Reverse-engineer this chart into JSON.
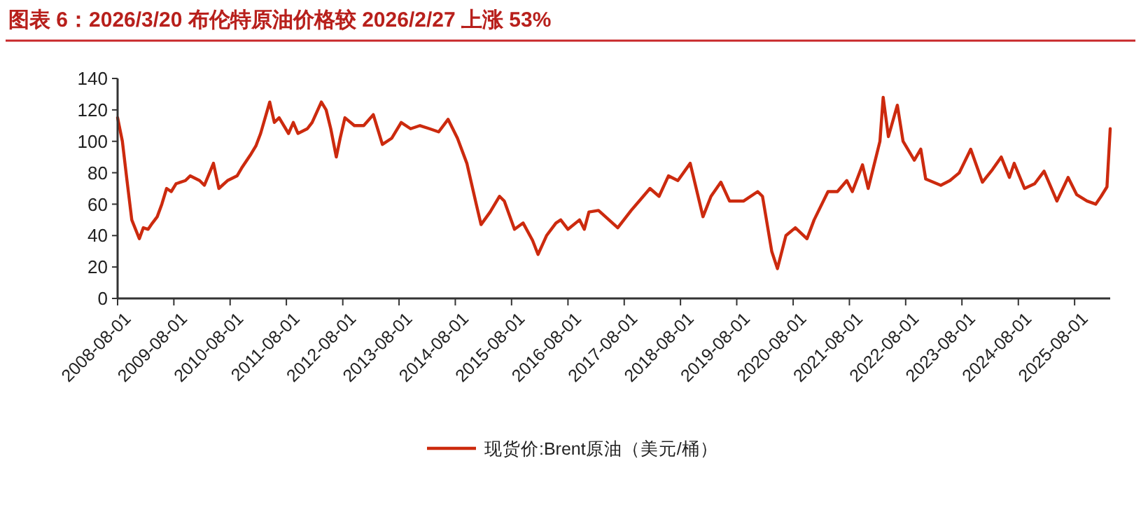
{
  "chart_data": {
    "type": "line",
    "title": "图表 6：2026/3/20 布伦特原油价格较 2026/2/27 上涨 53%",
    "x": [
      "2008-08-01",
      "2008-09-01",
      "2008-10-01",
      "2008-11-01",
      "2008-12-20",
      "2009-01-15",
      "2009-02-15",
      "2009-03-15",
      "2009-04-15",
      "2009-05-15",
      "2009-06-15",
      "2009-07-15",
      "2009-08-15",
      "2009-10-15",
      "2009-11-15",
      "2010-01-15",
      "2010-02-15",
      "2010-04-15",
      "2010-05-20",
      "2010-07-15",
      "2010-09-15",
      "2010-10-15",
      "2010-12-15",
      "2011-01-15",
      "2011-02-15",
      "2011-04-15",
      "2011-05-15",
      "2011-06-15",
      "2011-08-15",
      "2011-09-15",
      "2011-10-15",
      "2011-12-15",
      "2012-01-15",
      "2012-03-15",
      "2012-04-15",
      "2012-05-15",
      "2012-06-20",
      "2012-07-15",
      "2012-08-15",
      "2012-10-15",
      "2012-12-15",
      "2013-02-15",
      "2013-04-15",
      "2013-06-15",
      "2013-08-15",
      "2013-10-15",
      "2013-12-15",
      "2014-02-15",
      "2014-04-15",
      "2014-06-15",
      "2014-08-15",
      "2014-10-15",
      "2014-12-15",
      "2015-01-15",
      "2015-03-15",
      "2015-05-15",
      "2015-06-15",
      "2015-08-20",
      "2015-10-15",
      "2015-12-15",
      "2016-01-20",
      "2016-03-15",
      "2016-05-15",
      "2016-06-15",
      "2016-08-01",
      "2016-10-15",
      "2016-11-15",
      "2016-12-15",
      "2017-02-15",
      "2017-06-20",
      "2017-09-15",
      "2017-11-15",
      "2018-01-15",
      "2018-03-15",
      "2018-05-15",
      "2018-07-15",
      "2018-10-03",
      "2018-12-25",
      "2019-02-15",
      "2019-04-20",
      "2019-06-15",
      "2019-09-15",
      "2019-12-15",
      "2020-01-15",
      "2020-03-15",
      "2020-04-21",
      "2020-06-15",
      "2020-08-15",
      "2020-10-30",
      "2020-12-15",
      "2021-03-15",
      "2021-05-15",
      "2021-07-15",
      "2021-08-20",
      "2021-10-25",
      "2021-12-01",
      "2022-02-15",
      "2022-03-08",
      "2022-04-11",
      "2022-06-08",
      "2022-07-15",
      "2022-09-26",
      "2022-11-07",
      "2022-12-09",
      "2023-03-17",
      "2023-05-15",
      "2023-07-15",
      "2023-09-27",
      "2023-12-12",
      "2024-02-15",
      "2024-04-12",
      "2024-06-04",
      "2024-07-05",
      "2024-09-10",
      "2024-11-15",
      "2025-01-15",
      "2025-04-08",
      "2025-06-20",
      "2025-08-15",
      "2025-10-20",
      "2025-12-16",
      "2026-01-20",
      "2026-02-27",
      "2026-03-20"
    ],
    "series": [
      {
        "name": "现货价:Brent原油（美元/桶）",
        "color": "#cc2a0e",
        "values": [
          115,
          100,
          75,
          50,
          38,
          45,
          44,
          48,
          52,
          60,
          70,
          68,
          73,
          75,
          78,
          75,
          72,
          86,
          70,
          75,
          78,
          83,
          92,
          97,
          105,
          125,
          112,
          115,
          105,
          112,
          105,
          108,
          112,
          125,
          120,
          108,
          90,
          102,
          115,
          110,
          110,
          117,
          98,
          102,
          112,
          108,
          110,
          108,
          106,
          114,
          102,
          86,
          60,
          47,
          55,
          65,
          62,
          44,
          48,
          37,
          28,
          40,
          48,
          50,
          44,
          50,
          44,
          55,
          56,
          45,
          56,
          63,
          70,
          65,
          78,
          75,
          86,
          52,
          65,
          74,
          62,
          62,
          68,
          65,
          30,
          19,
          40,
          45,
          38,
          50,
          68,
          68,
          75,
          68,
          85,
          70,
          100,
          128,
          103,
          123,
          100,
          88,
          95,
          76,
          72,
          75,
          80,
          95,
          74,
          82,
          90,
          77,
          86,
          70,
          73,
          81,
          62,
          77,
          66,
          62,
          60,
          65,
          71,
          108
        ]
      }
    ],
    "xlim": [
      "2008-08-01",
      "2026-03-20"
    ],
    "xticks": [
      "2008-08-01",
      "2009-08-01",
      "2010-08-01",
      "2011-08-01",
      "2012-08-01",
      "2013-08-01",
      "2014-08-01",
      "2015-08-01",
      "2016-08-01",
      "2017-08-01",
      "2018-08-01",
      "2019-08-01",
      "2020-08-01",
      "2021-08-01",
      "2022-08-01",
      "2023-08-01",
      "2024-08-01",
      "2025-08-01"
    ],
    "ylim": [
      0,
      140
    ],
    "yticks": [
      0,
      20,
      40,
      60,
      80,
      100,
      120,
      140
    ],
    "grid": false,
    "legend": "bottom",
    "marker": "none",
    "line_style": "solid"
  }
}
